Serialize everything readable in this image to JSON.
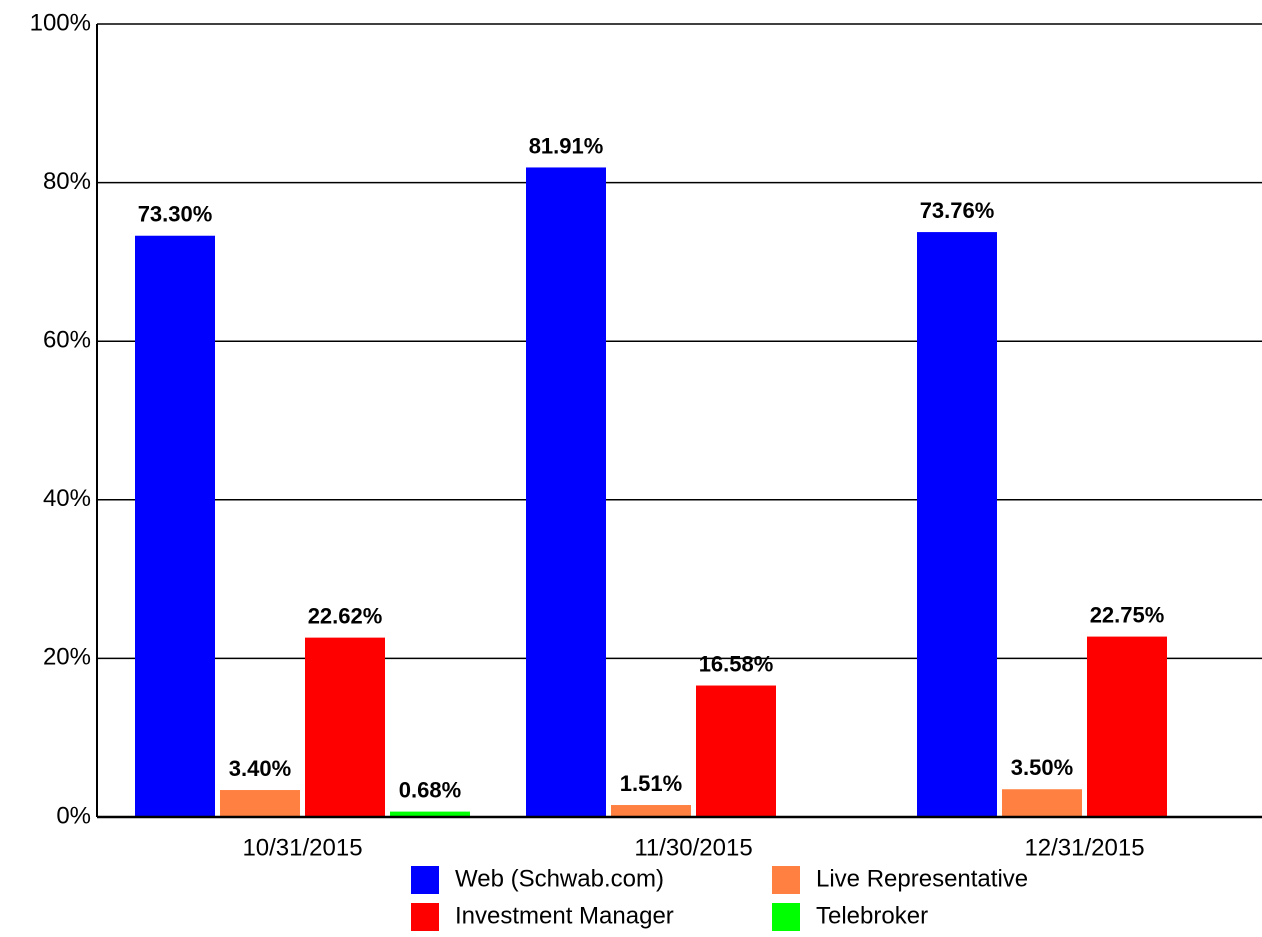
{
  "chart_data": {
    "type": "bar",
    "categories": [
      "10/31/2015",
      "11/30/2015",
      "12/31/2015"
    ],
    "series": [
      {
        "name": "Web (Schwab.com)",
        "color": "#0000ff",
        "values": [
          73.3,
          81.91,
          73.76
        ],
        "value_labels": [
          "73.30%",
          "81.91%",
          "73.76%"
        ]
      },
      {
        "name": "Live Representative",
        "color": "#ff8040",
        "values": [
          3.4,
          1.51,
          3.5
        ],
        "value_labels": [
          "3.40%",
          "1.51%",
          "3.50%"
        ]
      },
      {
        "name": "Investment Manager",
        "color": "#ff0000",
        "values": [
          22.62,
          16.58,
          22.75
        ],
        "value_labels": [
          "22.62%",
          "16.58%",
          "22.75%"
        ]
      },
      {
        "name": "Telebroker",
        "color": "#00ff00",
        "values": [
          0.68,
          null,
          null
        ],
        "value_labels": [
          "0.68%",
          null,
          null
        ]
      }
    ],
    "ylim": [
      0,
      100
    ],
    "yticks": [
      {
        "value": 0,
        "label": "0%"
      },
      {
        "value": 20,
        "label": "20%"
      },
      {
        "value": 40,
        "label": "40%"
      },
      {
        "value": 60,
        "label": "60%"
      },
      {
        "value": 80,
        "label": "80%"
      },
      {
        "value": 100,
        "label": "100%"
      }
    ],
    "grid": true
  }
}
